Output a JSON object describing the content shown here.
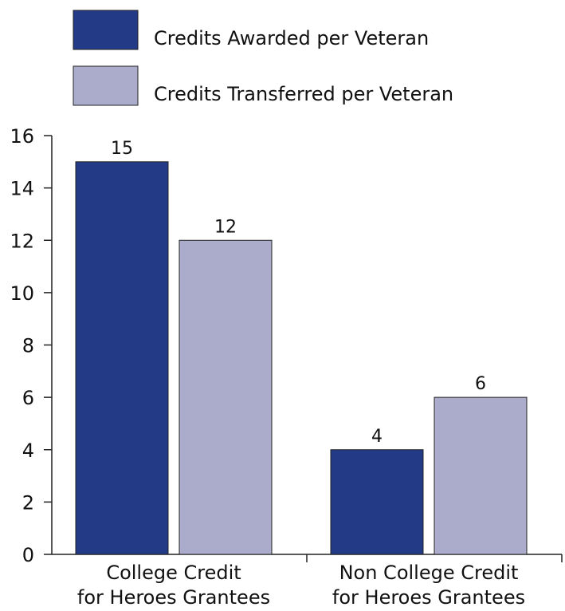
{
  "chart_data": {
    "type": "bar",
    "categories": [
      "College Credit\nfor Heroes Grantees",
      "Non College Credit\nfor Heroes Grantees"
    ],
    "series": [
      {
        "name": "Credits Awarded per Veteran",
        "color": "#233b87",
        "values": [
          15,
          4
        ]
      },
      {
        "name": "Credits Transferred per Veteran",
        "color": "#abaccc",
        "values": [
          12,
          6
        ]
      }
    ],
    "ylim": [
      0,
      16
    ],
    "yticks": [
      0,
      2,
      4,
      6,
      8,
      10,
      12,
      14,
      16
    ],
    "grid": false,
    "legend": "top"
  }
}
